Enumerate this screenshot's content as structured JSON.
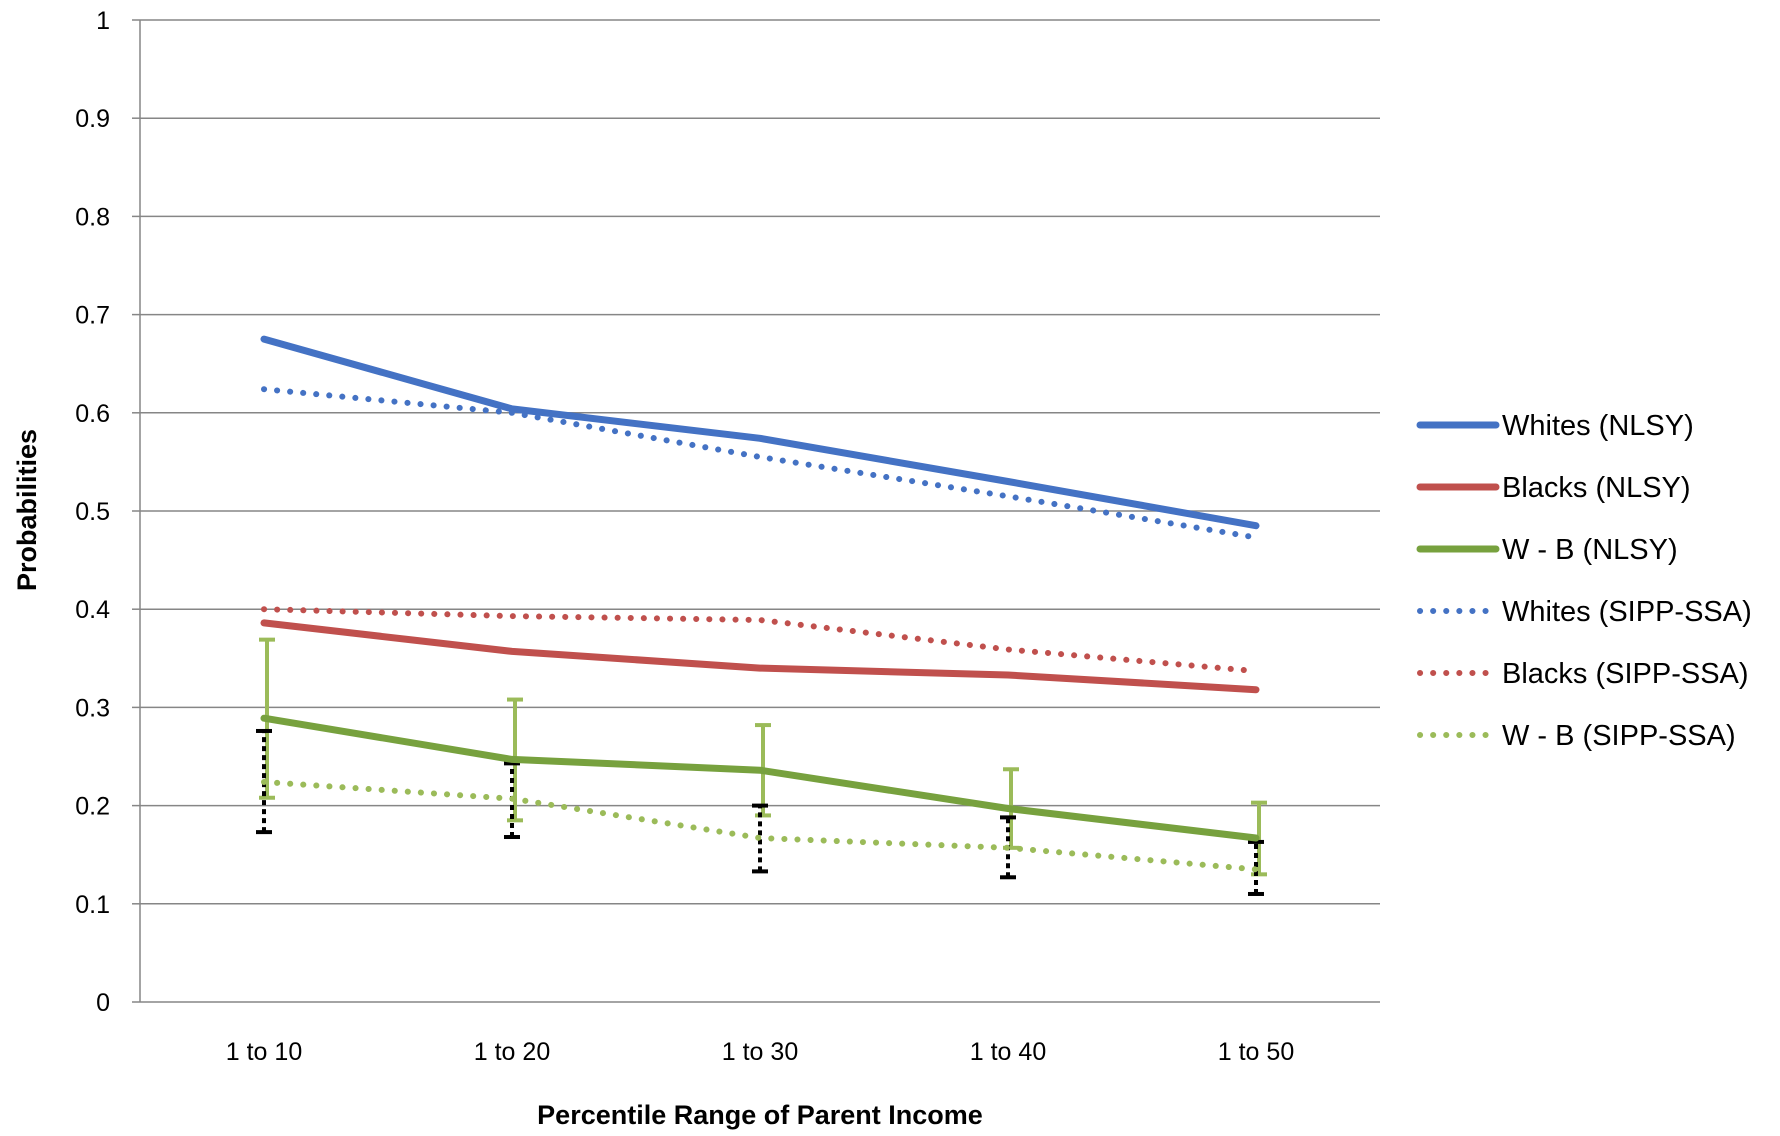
{
  "chart_data": {
    "type": "line",
    "xlabel": "Percentile Range of  Parent  Income",
    "ylabel": "Probabilities",
    "categories": [
      "1 to 10",
      "1 to 20",
      "1 to 30",
      "1 to 40",
      "1 to 50"
    ],
    "ylim": [
      0,
      1
    ],
    "yticks": [
      "0",
      "0.1",
      "0.2",
      "0.3",
      "0.4",
      "0.5",
      "0.6",
      "0.7",
      "0.8",
      "0.9",
      "1"
    ],
    "grid": true,
    "legend_position": "right",
    "series": [
      {
        "name": "Whites (NLSY)",
        "style": "solid",
        "color": "#4472C4",
        "values": [
          0.675,
          0.604,
          0.574,
          0.53,
          0.485
        ]
      },
      {
        "name": "Blacks (NLSY)",
        "style": "solid",
        "color": "#C0504D",
        "values": [
          0.386,
          0.357,
          0.34,
          0.333,
          0.318
        ]
      },
      {
        "name": "W - B (NLSY)",
        "style": "solid",
        "color": "#77A13E",
        "values": [
          0.289,
          0.247,
          0.236,
          0.197,
          0.167
        ],
        "error_bars": [
          [
            0.208,
            0.369
          ],
          [
            0.185,
            0.308
          ],
          [
            0.19,
            0.282
          ],
          [
            0.157,
            0.237
          ],
          [
            0.13,
            0.203
          ]
        ]
      },
      {
        "name": "Whites (SIPP-SSA)",
        "style": "dotted",
        "color": "#4472C4",
        "values": [
          0.624,
          0.6,
          0.555,
          0.515,
          0.473
        ]
      },
      {
        "name": "Blacks (SIPP-SSA)",
        "style": "dotted",
        "color": "#C0504D",
        "values": [
          0.4,
          0.393,
          0.389,
          0.359,
          0.337
        ]
      },
      {
        "name": "W - B (SIPP-SSA)",
        "style": "dotted",
        "color": "#9BBB59",
        "values": [
          0.224,
          0.207,
          0.167,
          0.157,
          0.135
        ],
        "error_bars": [
          [
            0.173,
            0.276
          ],
          [
            0.168,
            0.243
          ],
          [
            0.133,
            0.2
          ],
          [
            0.127,
            0.188
          ],
          [
            0.11,
            0.163
          ]
        ]
      }
    ]
  }
}
